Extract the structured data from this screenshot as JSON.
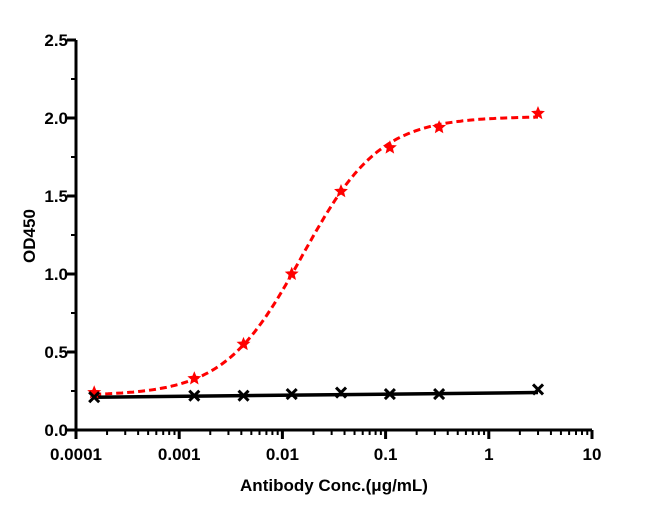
{
  "chart_data": {
    "type": "scatter",
    "xlabel": "Antibody Conc.(μg/mL)",
    "ylabel": "OD450",
    "xscale": "log",
    "xlim": [
      0.0001,
      10
    ],
    "ylim": [
      0.0,
      2.5
    ],
    "xticks": [
      0.0001,
      0.001,
      0.01,
      0.1,
      1,
      10
    ],
    "xtick_labels": [
      "0.0001",
      "0.001",
      "0.01",
      "0.1",
      "1",
      "10"
    ],
    "yticks": [
      0.0,
      0.5,
      1.0,
      1.5,
      2.0,
      2.5
    ],
    "ytick_labels": [
      "0.0",
      "0.5",
      "1.0",
      "1.5",
      "2.0",
      "2.5"
    ],
    "grid": false,
    "legend": "none",
    "series": [
      {
        "color": "#ff0000",
        "marker": "star",
        "line_style": "dashed",
        "fit": "sigmoidal",
        "x": [
          0.00015,
          0.0014,
          0.0042,
          0.0123,
          0.037,
          0.11,
          0.33,
          3.0
        ],
        "y": [
          0.24,
          0.33,
          0.55,
          1.0,
          1.53,
          1.81,
          1.94,
          2.03
        ]
      },
      {
        "color": "#000000",
        "marker": "x",
        "line_style": "solid",
        "fit": "linear",
        "x": [
          0.00015,
          0.0014,
          0.0042,
          0.0123,
          0.037,
          0.11,
          0.33,
          3.0
        ],
        "y": [
          0.21,
          0.22,
          0.22,
          0.23,
          0.24,
          0.23,
          0.23,
          0.26
        ]
      }
    ]
  }
}
